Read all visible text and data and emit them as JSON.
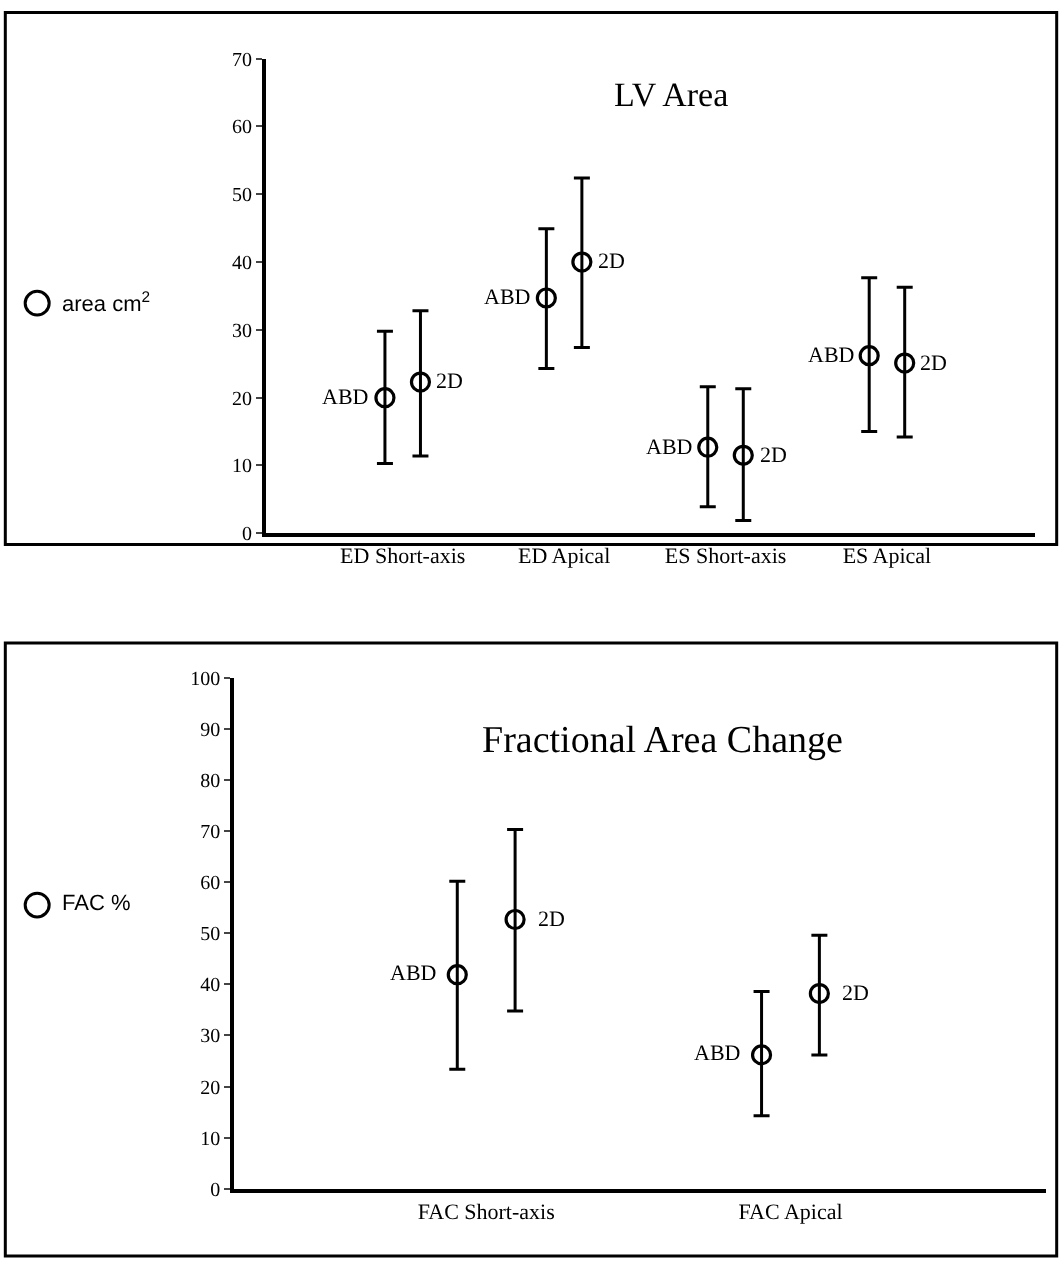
{
  "chart_data": [
    {
      "type": "scatter",
      "title": "LV Area",
      "ylabel": "area cm$^{2}$",
      "categories": [
        "ED Short-axis",
        "ED Apical",
        "ES Short-axis",
        "ES Apical"
      ],
      "ylim": [
        0,
        70
      ],
      "yticks": [
        0,
        10,
        20,
        30,
        40,
        50,
        60,
        70
      ],
      "marker": "circle",
      "legend": false,
      "series": [
        {
          "name": "ABD",
          "color": "#000000",
          "values": [
            20.0,
            34.7,
            12.7,
            26.2
          ],
          "errors": [
            [
              10.3,
              29.8
            ],
            [
              24.3,
              44.9
            ],
            [
              3.9,
              21.6
            ],
            [
              15.0,
              37.7
            ]
          ]
        },
        {
          "name": "2D",
          "color": "#000000",
          "values": [
            22.3,
            40.0,
            11.5,
            25.1
          ],
          "errors": [
            [
              11.4,
              32.8
            ],
            [
              27.4,
              52.4
            ],
            [
              1.9,
              21.3
            ],
            [
              14.2,
              36.3
            ]
          ]
        }
      ]
    },
    {
      "type": "scatter",
      "title": "Fractional Area Change",
      "ylabel": "FAC %",
      "categories": [
        "FAC Short-axis",
        "FAC Apical"
      ],
      "ylim": [
        0,
        100
      ],
      "yticks": [
        0,
        10,
        20,
        30,
        40,
        50,
        60,
        70,
        80,
        90,
        100
      ],
      "marker": "circle",
      "legend": false,
      "series": [
        {
          "name": "ABD",
          "color": "#000000",
          "values": [
            41.9,
            26.2
          ],
          "errors": [
            [
              23.4,
              60.2
            ],
            [
              14.3,
              38.6
            ]
          ]
        },
        {
          "name": "2D",
          "color": "#000000",
          "values": [
            52.7,
            38.2
          ],
          "errors": [
            [
              34.8,
              70.3
            ],
            [
              26.2,
              49.6
            ]
          ]
        }
      ]
    }
  ]
}
